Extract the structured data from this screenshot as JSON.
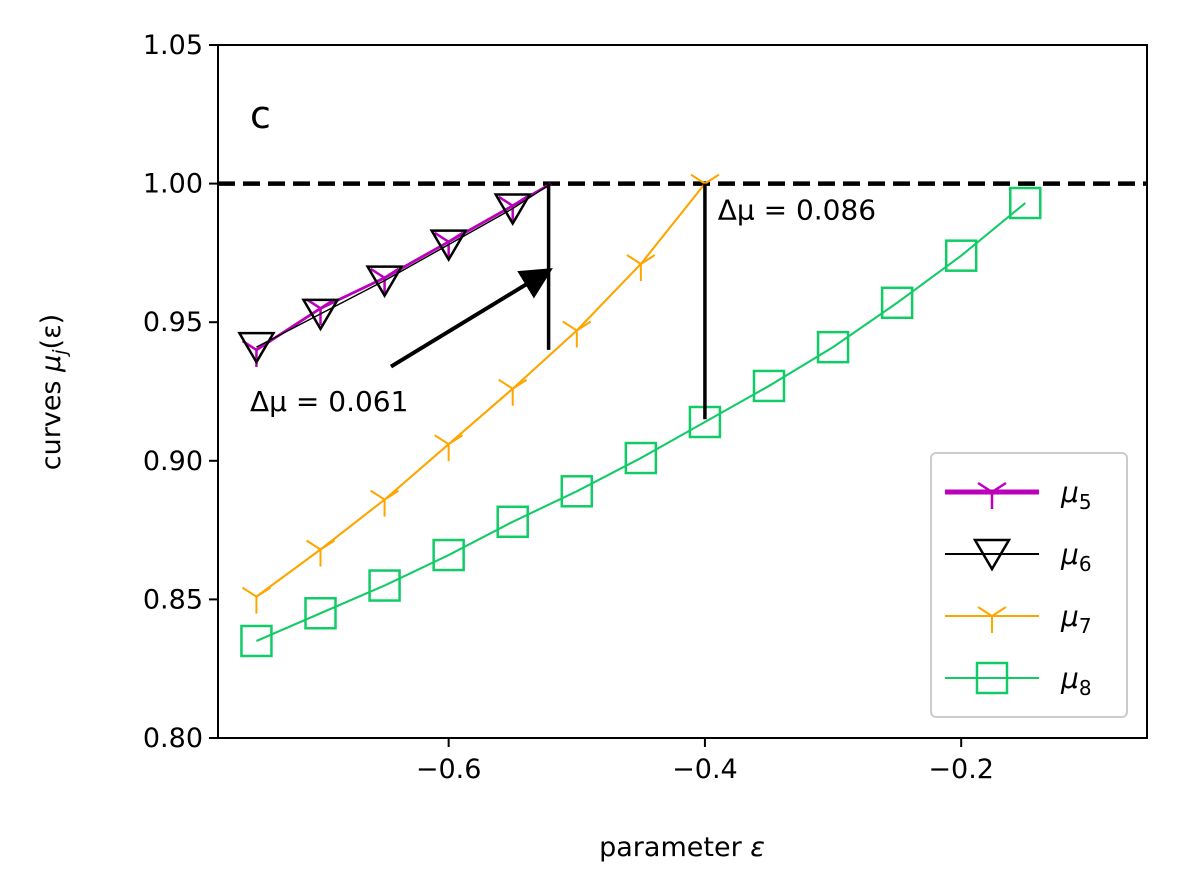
{
  "chart_data": {
    "type": "line",
    "panel_label": "c",
    "xlabel": "parameter ε",
    "ylabel": "curves μ_j(ε)",
    "xlabel_text": "parameter ",
    "xlabel_sym": "ε",
    "ylabel_text": "curves ",
    "ylabel_sym": "μ",
    "ylabel_sub": "j",
    "ylabel_arg": "(ε)",
    "xlim": [
      -0.78,
      -0.055
    ],
    "ylim": [
      0.8,
      1.05
    ],
    "xticks": [
      -0.6,
      -0.4,
      -0.2
    ],
    "xtick_labels": [
      "−0.6",
      "−0.4",
      "−0.2"
    ],
    "yticks": [
      0.8,
      0.85,
      0.9,
      0.95,
      1.0,
      1.05
    ],
    "ytick_labels": [
      "0.80",
      "0.85",
      "0.90",
      "0.95",
      "1.00",
      "1.05"
    ],
    "reference_line": {
      "y": 1.0,
      "style": "dashed",
      "color": "#000000"
    },
    "series": [
      {
        "name": "μ5",
        "sym": "μ",
        "sub": "5",
        "color": "#bb00bb",
        "marker": "tri_down_thick",
        "linewidth": 2,
        "x": [
          -0.75,
          -0.7,
          -0.65,
          -0.6,
          -0.55,
          -0.52
        ],
        "y": [
          0.94,
          0.955,
          0.966,
          0.979,
          0.992,
          1.0
        ]
      },
      {
        "name": "μ6",
        "sym": "μ",
        "sub": "6",
        "color": "#000000",
        "marker": "triangle_down_open",
        "linewidth": 1,
        "x": [
          -0.75,
          -0.7,
          -0.65,
          -0.6,
          -0.55,
          -0.52
        ],
        "y": [
          0.941,
          0.953,
          0.965,
          0.978,
          0.991,
          1.0
        ]
      },
      {
        "name": "μ7",
        "sym": "μ",
        "sub": "7",
        "color": "#ffa500",
        "marker": "tri_down",
        "linewidth": 1.5,
        "x": [
          -0.75,
          -0.7,
          -0.65,
          -0.6,
          -0.55,
          -0.5,
          -0.45,
          -0.4
        ],
        "y": [
          0.851,
          0.868,
          0.886,
          0.906,
          0.926,
          0.947,
          0.971,
          1.0
        ]
      },
      {
        "name": "μ8",
        "sym": "μ",
        "sub": "8",
        "color": "#11cc66",
        "marker": "square_open",
        "linewidth": 1.5,
        "x": [
          -0.75,
          -0.7,
          -0.65,
          -0.6,
          -0.55,
          -0.5,
          -0.45,
          -0.4,
          -0.35,
          -0.3,
          -0.25,
          -0.2,
          -0.15
        ],
        "y": [
          0.835,
          0.845,
          0.855,
          0.866,
          0.878,
          0.889,
          0.901,
          0.914,
          0.927,
          0.941,
          0.957,
          0.974,
          0.993
        ]
      }
    ],
    "annotations": [
      {
        "id": "delta1",
        "text": "Δμ = 0.061",
        "text_x": -0.755,
        "text_y": 0.918,
        "line_x": -0.522,
        "line_y": [
          0.94,
          1.0
        ],
        "arrow_from": [
          -0.645,
          0.934
        ],
        "arrow_to": [
          -0.524,
          0.968
        ]
      },
      {
        "id": "delta2",
        "text": "Δμ = 0.086",
        "text_x": -0.39,
        "text_y": 0.987,
        "line_x": -0.4,
        "line_y": [
          0.915,
          1.0
        ]
      }
    ],
    "legend": {
      "position": "lower right",
      "entries": [
        "μ5",
        "μ6",
        "μ7",
        "μ8"
      ]
    }
  }
}
